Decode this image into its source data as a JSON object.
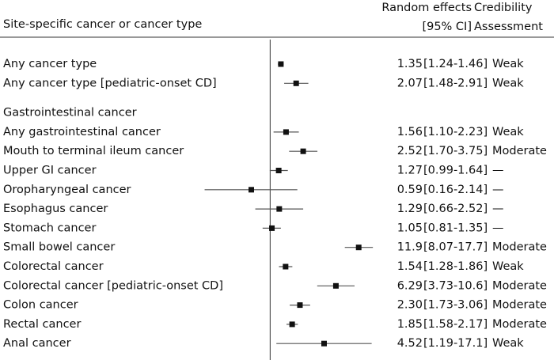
{
  "chart_data": {
    "type": "forest",
    "label_header": "Site-specific cancer or cancer type",
    "estimate_header": [
      "Random effects",
      "[95% CI]"
    ],
    "assessment_header": [
      "Credibility",
      "Assessment"
    ],
    "log_scale": true,
    "reference_line": 1,
    "xlim": [
      0.05,
      30
    ],
    "marker_color": "#111111",
    "ci_color": "#555555",
    "rows": [
      {
        "label": "Any cancer type",
        "estimate": 1.35,
        "lower": 1.24,
        "upper": 1.46,
        "estimate_label": "1.35",
        "ci_label": "[1.24-1.46]",
        "assessment": "Weak"
      },
      {
        "label": "Any cancer type [pediatric-onset CD]",
        "estimate": 2.07,
        "lower": 1.48,
        "upper": 2.91,
        "estimate_label": "2.07",
        "ci_label": "[1.48-2.91]",
        "assessment": "Weak"
      },
      {
        "label": "Gastrointestinal cancer"
      },
      {
        "label": "Any gastrointestinal cancer",
        "estimate": 1.56,
        "lower": 1.1,
        "upper": 2.23,
        "estimate_label": "1.56",
        "ci_label": "[1.10-2.23]",
        "assessment": "Weak"
      },
      {
        "label": "Mouth to terminal ileum cancer",
        "estimate": 2.52,
        "lower": 1.7,
        "upper": 3.75,
        "estimate_label": "2.52",
        "ci_label": "[1.70-3.75]",
        "assessment": "Moderate"
      },
      {
        "label": "Upper GI cancer",
        "estimate": 1.27,
        "lower": 0.99,
        "upper": 1.64,
        "estimate_label": "1.27",
        "ci_label": "[0.99-1.64]",
        "assessment": "—"
      },
      {
        "label": "Oropharyngeal cancer",
        "estimate": 0.59,
        "lower": 0.16,
        "upper": 2.14,
        "estimate_label": "0.59",
        "ci_label": "[0.16-2.14]",
        "assessment": "—"
      },
      {
        "label": "Esophagus cancer",
        "estimate": 1.29,
        "lower": 0.66,
        "upper": 2.52,
        "estimate_label": "1.29",
        "ci_label": "[0.66-2.52]",
        "assessment": "—"
      },
      {
        "label": "Stomach cancer",
        "estimate": 1.05,
        "lower": 0.81,
        "upper": 1.35,
        "estimate_label": "1.05",
        "ci_label": "[0.81-1.35]",
        "assessment": "—"
      },
      {
        "label": "Small bowel cancer",
        "estimate": 11.9,
        "lower": 8.07,
        "upper": 17.7,
        "estimate_label": "11.9",
        "ci_label": "[8.07-17.7]",
        "assessment": "Moderate"
      },
      {
        "label": "Colorectal cancer",
        "estimate": 1.54,
        "lower": 1.28,
        "upper": 1.86,
        "estimate_label": "1.54",
        "ci_label": "[1.28-1.86]",
        "assessment": "Weak"
      },
      {
        "label": "Colorectal cancer [pediatric-onset CD]",
        "estimate": 6.29,
        "lower": 3.73,
        "upper": 10.6,
        "estimate_label": "6.29",
        "ci_label": "[3.73-10.6]",
        "assessment": "Moderate"
      },
      {
        "label": "Colon cancer",
        "estimate": 2.3,
        "lower": 1.73,
        "upper": 3.06,
        "estimate_label": "2.30",
        "ci_label": "[1.73-3.06]",
        "assessment": "Moderate"
      },
      {
        "label": "Rectal cancer",
        "estimate": 1.85,
        "lower": 1.58,
        "upper": 2.17,
        "estimate_label": "1.85",
        "ci_label": "[1.58-2.17]",
        "assessment": "Moderate"
      },
      {
        "label": "Anal cancer",
        "estimate": 4.52,
        "lower": 1.19,
        "upper": 17.1,
        "estimate_label": "4.52",
        "ci_label": "[1.19-17.1]",
        "assessment": "Weak"
      }
    ]
  }
}
